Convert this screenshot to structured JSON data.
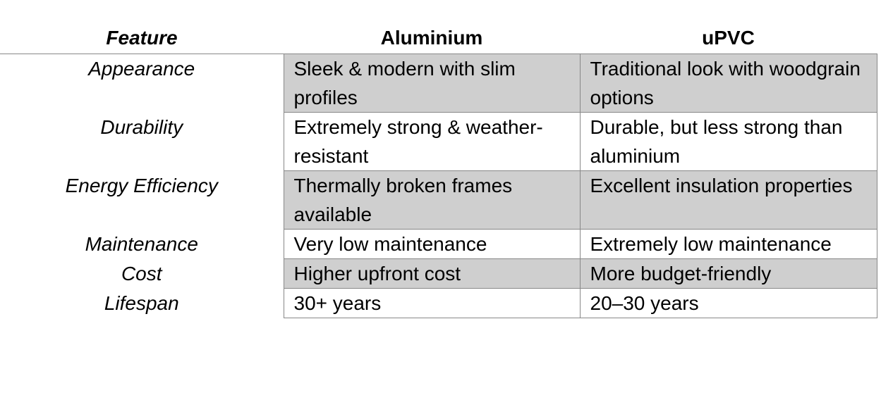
{
  "table": {
    "header": [
      "Feature",
      "Aluminium",
      "uPVC"
    ],
    "rows": [
      [
        "Appearance",
        "Sleek & modern with slim profiles",
        "Traditional look with woodgrain options"
      ],
      [
        "Durability",
        "Extremely strong & weather-resistant",
        "Durable, but less strong than aluminium"
      ],
      [
        "Energy Efficiency",
        "Thermally broken frames available",
        "Excellent insulation properties"
      ],
      [
        "Maintenance",
        "Very low maintenance",
        "Extremely low maintenance"
      ],
      [
        "Cost",
        "Higher upfront cost",
        "More budget-friendly"
      ],
      [
        "Lifespan",
        "30+ years",
        "20–30 years"
      ]
    ]
  }
}
